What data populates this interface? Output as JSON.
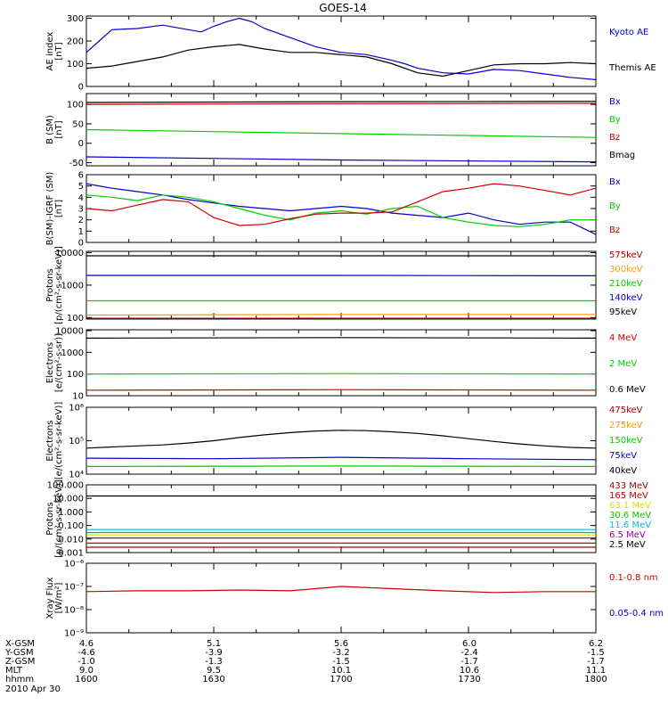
{
  "title": "GOES-14",
  "date_label": "2010 Apr 30",
  "colors": {
    "black": "#000000",
    "blue": "#0000cc",
    "red": "#cc0000",
    "green": "#00cc00",
    "dark_red": "#aa0000",
    "orange": "#ff9900",
    "cyan": "#00bbdd",
    "yellow": "#dddd00",
    "purple": "#990099"
  },
  "ephemeris": {
    "rows": [
      {
        "label": "X-GSM",
        "values": [
          "4.6",
          "5.1",
          "5.6",
          "6.0",
          "6.2"
        ]
      },
      {
        "label": "Y-GSM",
        "values": [
          "-4.6",
          "-3.9",
          "-3.2",
          "-2.4",
          "-1.5"
        ]
      },
      {
        "label": "Z-GSM",
        "values": [
          "-1.0",
          "-1.3",
          "-1.5",
          "-1.7",
          "-1.7"
        ]
      },
      {
        "label": "MLT",
        "values": [
          "9.0",
          "9.5",
          "10.1",
          "10.6",
          "11.1"
        ]
      },
      {
        "label": "hhmm",
        "values": [
          "1600",
          "1630",
          "1700",
          "1730",
          "1800"
        ]
      }
    ]
  },
  "chart_data": [
    {
      "type": "line",
      "id": "ae",
      "ylabel_lines": [
        "AE index",
        "[nT]"
      ],
      "scale": "linear",
      "ylim": [
        0,
        310
      ],
      "yticks": [
        0,
        100,
        200,
        300
      ],
      "ytick_labels": [
        "0",
        "100",
        "200",
        "300"
      ],
      "xlim": [
        1600,
        1800
      ],
      "series": [
        {
          "name": "Kyoto AE",
          "color": "blue",
          "x": [
            1600,
            1605,
            1610,
            1620,
            1630,
            1640,
            1645,
            1650,
            1655,
            1660,
            1665,
            1670,
            1680,
            1690,
            1700,
            1710,
            1720,
            1725,
            1730,
            1740,
            1750,
            1760,
            1770,
            1780,
            1790,
            1800
          ],
          "y": [
            150,
            200,
            250,
            255,
            270,
            250,
            240,
            265,
            285,
            300,
            285,
            255,
            215,
            175,
            150,
            140,
            115,
            100,
            80,
            60,
            55,
            75,
            70,
            55,
            40,
            30
          ]
        },
        {
          "name": "Themis AE",
          "color": "black",
          "x": [
            1600,
            1610,
            1620,
            1630,
            1640,
            1650,
            1660,
            1670,
            1680,
            1690,
            1700,
            1710,
            1720,
            1730,
            1740,
            1750,
            1760,
            1770,
            1780,
            1790,
            1800
          ],
          "y": [
            80,
            90,
            110,
            130,
            160,
            175,
            185,
            165,
            150,
            150,
            140,
            130,
            100,
            60,
            45,
            70,
            95,
            100,
            100,
            105,
            100
          ]
        }
      ]
    },
    {
      "type": "line",
      "id": "bsm",
      "ylabel_lines": [
        "B (SM)",
        "[nT]"
      ],
      "scale": "linear",
      "ylim": [
        -58,
        128
      ],
      "yticks": [
        -50,
        0,
        50,
        100
      ],
      "ytick_labels": [
        "-50",
        "0",
        "50",
        "100"
      ],
      "xlim": [
        1600,
        1800
      ],
      "series": [
        {
          "name": "Bx",
          "color": "blue",
          "x": [
            1600,
            1700,
            1800
          ],
          "y": [
            -35,
            -43,
            -48
          ]
        },
        {
          "name": "By",
          "color": "green",
          "x": [
            1600,
            1700,
            1800
          ],
          "y": [
            35,
            25,
            15
          ]
        },
        {
          "name": "Bz",
          "color": "red",
          "x": [
            1600,
            1700,
            1800
          ],
          "y": [
            100,
            102,
            103
          ]
        },
        {
          "name": "Bmag",
          "color": "black",
          "x": [
            1600,
            1700,
            1800
          ],
          "y": [
            105,
            107,
            108
          ]
        }
      ]
    },
    {
      "type": "line",
      "id": "bigrf",
      "ylabel_lines": [
        "B(SM)-IGRF (SM)",
        "[nT]"
      ],
      "scale": "linear",
      "ylim": [
        0,
        6
      ],
      "yticks": [
        0,
        1,
        2,
        3,
        4,
        5,
        6
      ],
      "ytick_labels": [
        "0",
        "1",
        "2",
        "3",
        "4",
        "5",
        "6"
      ],
      "xlim": [
        1600,
        1800
      ],
      "series": [
        {
          "name": "Bx",
          "color": "blue",
          "x": [
            1600,
            1610,
            1620,
            1630,
            1640,
            1650,
            1660,
            1670,
            1680,
            1690,
            1700,
            1710,
            1720,
            1730,
            1740,
            1750,
            1760,
            1770,
            1780,
            1790,
            1800
          ],
          "y": [
            5.2,
            4.8,
            4.5,
            4.2,
            3.8,
            3.5,
            3.2,
            3.0,
            2.8,
            3.0,
            3.2,
            3.0,
            2.6,
            2.4,
            2.2,
            2.6,
            2.0,
            1.6,
            1.8,
            1.8,
            0.7
          ]
        },
        {
          "name": "By",
          "color": "green",
          "x": [
            1600,
            1610,
            1620,
            1630,
            1640,
            1650,
            1660,
            1670,
            1680,
            1690,
            1700,
            1710,
            1720,
            1730,
            1740,
            1750,
            1760,
            1770,
            1780,
            1790,
            1800
          ],
          "y": [
            4.2,
            4.0,
            3.7,
            4.2,
            4.0,
            3.6,
            3.0,
            2.4,
            2.0,
            2.6,
            2.8,
            2.5,
            3.0,
            3.2,
            2.2,
            1.8,
            1.5,
            1.4,
            1.6,
            2.0,
            2.0
          ]
        },
        {
          "name": "Bz",
          "color": "red",
          "x": [
            1600,
            1610,
            1620,
            1630,
            1640,
            1650,
            1660,
            1670,
            1680,
            1690,
            1700,
            1710,
            1720,
            1730,
            1740,
            1750,
            1760,
            1770,
            1780,
            1790,
            1800
          ],
          "y": [
            3.0,
            2.8,
            3.3,
            3.8,
            3.6,
            2.2,
            1.5,
            1.6,
            2.1,
            2.5,
            2.6,
            2.6,
            2.7,
            3.6,
            4.5,
            4.8,
            5.2,
            5.0,
            4.6,
            4.2,
            4.8
          ]
        }
      ]
    },
    {
      "type": "line",
      "id": "protons_low",
      "ylabel_lines": [
        "Protons",
        "[p/(cm²-s-sr-keV)]"
      ],
      "scale": "log",
      "ylim": [
        90,
        11000
      ],
      "yticks": [
        100,
        1000,
        10000
      ],
      "ytick_labels": [
        "100",
        "1000",
        "10000"
      ],
      "xlim": [
        1600,
        1800
      ],
      "series": [
        {
          "name": "575keV",
          "color": "dark_red",
          "x": [
            1600,
            1700,
            1800
          ],
          "y": [
            95,
            95,
            95
          ]
        },
        {
          "name": "300keV",
          "color": "orange",
          "x": [
            1600,
            1700,
            1800
          ],
          "y": [
            120,
            125,
            125
          ]
        },
        {
          "name": "210keV",
          "color": "green",
          "x": [
            1600,
            1700,
            1800
          ],
          "y": [
            330,
            330,
            330
          ]
        },
        {
          "name": "140keV",
          "color": "blue",
          "x": [
            1600,
            1700,
            1800
          ],
          "y": [
            2000,
            2000,
            1950
          ]
        },
        {
          "name": "95keV",
          "color": "black",
          "x": [
            1600,
            1700,
            1800
          ],
          "y": [
            8000,
            8000,
            8000
          ]
        }
      ]
    },
    {
      "type": "line",
      "id": "electrons_mev",
      "ylabel_lines": [
        "Electrons",
        "[e/(cm²-s-sr)]"
      ],
      "scale": "log",
      "ylim": [
        10,
        11000
      ],
      "yticks": [
        10,
        100,
        1000,
        10000
      ],
      "ytick_labels": [
        "10",
        "100",
        "1000",
        "10000"
      ],
      "xlim": [
        1600,
        1800
      ],
      "series": [
        {
          "name": "4 MeV",
          "color": "red",
          "x": [
            1600,
            1700,
            1800
          ],
          "y": [
            18,
            19,
            18
          ]
        },
        {
          "name": "2 MeV",
          "color": "green",
          "x": [
            1600,
            1700,
            1800
          ],
          "y": [
            100,
            105,
            100
          ]
        },
        {
          "name": "0.6 MeV",
          "color": "black",
          "x": [
            1600,
            1700,
            1800
          ],
          "y": [
            4500,
            4800,
            4500
          ]
        }
      ]
    },
    {
      "type": "line",
      "id": "electrons_kev",
      "ylabel_lines": [
        "Electrons",
        "[e/(cm²-s-sr-keV)]"
      ],
      "scale": "log",
      "ylim": [
        10000,
        1000000
      ],
      "yticks": [
        10000,
        100000,
        1000000
      ],
      "ytick_labels": [
        "10⁴",
        "10⁵",
        "10⁶"
      ],
      "xlim": [
        1600,
        1800
      ],
      "series": [
        {
          "name": "475keV",
          "color": "dark_red",
          "x": [],
          "y": []
        },
        {
          "name": "275keV",
          "color": "orange",
          "x": [],
          "y": []
        },
        {
          "name": "150keV",
          "color": "green",
          "x": [
            1600,
            1700,
            1800
          ],
          "y": [
            17000,
            17500,
            17000
          ]
        },
        {
          "name": "75keV",
          "color": "blue",
          "x": [
            1600,
            1650,
            1700,
            1750,
            1800
          ],
          "y": [
            30000,
            29000,
            32000,
            29000,
            27000
          ]
        },
        {
          "name": "40keV",
          "color": "black",
          "x": [
            1600,
            1610,
            1620,
            1630,
            1640,
            1650,
            1660,
            1670,
            1680,
            1690,
            1700,
            1710,
            1720,
            1730,
            1740,
            1750,
            1760,
            1770,
            1780,
            1790,
            1800
          ],
          "y": [
            60000,
            65000,
            70000,
            75000,
            85000,
            100000,
            125000,
            150000,
            175000,
            195000,
            205000,
            200000,
            185000,
            165000,
            140000,
            115000,
            95000,
            80000,
            70000,
            63000,
            60000
          ]
        }
      ]
    },
    {
      "type": "line",
      "id": "protons_mev",
      "ylabel_lines": [
        "Protons",
        "[p/(cm²-s-sr-keV)]"
      ],
      "scale": "log",
      "ylim": [
        0.001,
        100
      ],
      "yticks": [
        0.001,
        0.01,
        0.1,
        1,
        10,
        100
      ],
      "ytick_labels": [
        "0.001",
        "0.010",
        "0.100",
        "1.000",
        "10.000",
        "100.000"
      ],
      "xlim": [
        1600,
        1800
      ],
      "series": [
        {
          "name": "433 MeV",
          "color": "dark_red",
          "x": [
            1600,
            1800
          ],
          "y": [
            0.0025,
            0.0025
          ]
        },
        {
          "name": "165 MeV",
          "color": "red",
          "x": [
            1600,
            1800
          ],
          "y": [
            0.005,
            0.005
          ]
        },
        {
          "name": "63.1 MeV",
          "color": "yellow",
          "x": [
            1600,
            1800
          ],
          "y": [
            0.02,
            0.02
          ]
        },
        {
          "name": "30.6 MeV",
          "color": "green",
          "x": [
            1600,
            1800
          ],
          "y": [
            0.03,
            0.03
          ]
        },
        {
          "name": "11.6 MeV",
          "color": "cyan",
          "x": [
            1600,
            1800
          ],
          "y": [
            0.05,
            0.05
          ]
        },
        {
          "name": "6.5 MeV",
          "color": "purple",
          "x": [
            1600,
            1800
          ],
          "y": [
            0.012,
            0.012
          ]
        },
        {
          "name": "2.5 MeV",
          "color": "black",
          "x": [
            1600,
            1700,
            1800
          ],
          "y": [
            15,
            15,
            15
          ]
        }
      ]
    },
    {
      "type": "line",
      "id": "xray",
      "ylabel_lines": [
        "Xray Flux",
        "[W/m²]"
      ],
      "scale": "log",
      "ylim": [
        1e-09,
        1e-06
      ],
      "yticks": [
        1e-09,
        1e-08,
        1e-07,
        1e-06
      ],
      "ytick_labels": [
        "10⁻⁹",
        "10⁻⁸",
        "10⁻⁷",
        "10⁻⁶"
      ],
      "xlim": [
        1600,
        1800
      ],
      "series": [
        {
          "name": "0.1-0.8 nm",
          "color": "red",
          "x": [
            1600,
            1620,
            1640,
            1660,
            1680,
            1700,
            1720,
            1740,
            1760,
            1780,
            1800
          ],
          "y": [
            6e-08,
            6.5e-08,
            6.5e-08,
            7e-08,
            6.5e-08,
            1e-07,
            8e-08,
            6.5e-08,
            5.5e-08,
            6e-08,
            6e-08
          ]
        },
        {
          "name": "0.05-0.4 nm",
          "color": "blue",
          "x": [],
          "y": []
        }
      ]
    }
  ]
}
